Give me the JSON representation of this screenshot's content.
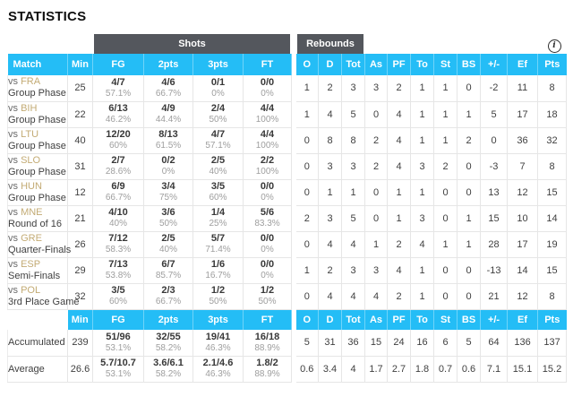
{
  "page_title": "STATISTICS",
  "vs_label": "vs",
  "colors": {
    "accent_cyan": "#24bdf6",
    "group_header_gray": "#54575d",
    "team_link_tan": "#c3ab74",
    "body_text": "#3f3f3f",
    "percent_gray": "#9e9e9e",
    "border_gray": "#e6e6e6"
  },
  "info_icon_glyph": "i",
  "table": {
    "group_headers": {
      "shots": "Shots",
      "rebounds": "Rebounds"
    },
    "columns_left": [
      "Match",
      "Min",
      "FG",
      "2pts",
      "3pts",
      "FT"
    ],
    "columns_right": [
      "O",
      "D",
      "Tot",
      "As",
      "PF",
      "To",
      "St",
      "BS",
      "+/-",
      "Ef",
      "Pts"
    ],
    "rows": [
      {
        "opponent": "FRA",
        "phase": "Group Phase",
        "min": "25",
        "shots": [
          {
            "v": "4/7",
            "pct": "57.1%"
          },
          {
            "v": "4/6",
            "pct": "66.7%"
          },
          {
            "v": "0/1",
            "pct": "0%"
          },
          {
            "v": "0/0",
            "pct": "0%"
          }
        ],
        "stats": [
          "1",
          "2",
          "3",
          "3",
          "2",
          "1",
          "1",
          "0",
          "-2",
          "11",
          "8"
        ]
      },
      {
        "opponent": "BIH",
        "phase": "Group Phase",
        "min": "22",
        "shots": [
          {
            "v": "6/13",
            "pct": "46.2%"
          },
          {
            "v": "4/9",
            "pct": "44.4%"
          },
          {
            "v": "2/4",
            "pct": "50%"
          },
          {
            "v": "4/4",
            "pct": "100%"
          }
        ],
        "stats": [
          "1",
          "4",
          "5",
          "0",
          "4",
          "1",
          "1",
          "1",
          "5",
          "17",
          "18"
        ]
      },
      {
        "opponent": "LTU",
        "phase": "Group Phase",
        "min": "40",
        "shots": [
          {
            "v": "12/20",
            "pct": "60%"
          },
          {
            "v": "8/13",
            "pct": "61.5%"
          },
          {
            "v": "4/7",
            "pct": "57.1%"
          },
          {
            "v": "4/4",
            "pct": "100%"
          }
        ],
        "stats": [
          "0",
          "8",
          "8",
          "2",
          "4",
          "1",
          "1",
          "2",
          "0",
          "36",
          "32"
        ]
      },
      {
        "opponent": "SLO",
        "phase": "Group Phase",
        "min": "31",
        "shots": [
          {
            "v": "2/7",
            "pct": "28.6%"
          },
          {
            "v": "0/2",
            "pct": "0%"
          },
          {
            "v": "2/5",
            "pct": "40%"
          },
          {
            "v": "2/2",
            "pct": "100%"
          }
        ],
        "stats": [
          "0",
          "3",
          "3",
          "2",
          "4",
          "3",
          "2",
          "0",
          "-3",
          "7",
          "8"
        ]
      },
      {
        "opponent": "HUN",
        "phase": "Group Phase",
        "min": "12",
        "shots": [
          {
            "v": "6/9",
            "pct": "66.7%"
          },
          {
            "v": "3/4",
            "pct": "75%"
          },
          {
            "v": "3/5",
            "pct": "60%"
          },
          {
            "v": "0/0",
            "pct": "0%"
          }
        ],
        "stats": [
          "0",
          "1",
          "1",
          "0",
          "1",
          "1",
          "0",
          "0",
          "13",
          "12",
          "15"
        ]
      },
      {
        "opponent": "MNE",
        "phase": "Round of 16",
        "min": "21",
        "shots": [
          {
            "v": "4/10",
            "pct": "40%"
          },
          {
            "v": "3/6",
            "pct": "50%"
          },
          {
            "v": "1/4",
            "pct": "25%"
          },
          {
            "v": "5/6",
            "pct": "83.3%"
          }
        ],
        "stats": [
          "2",
          "3",
          "5",
          "0",
          "1",
          "3",
          "0",
          "1",
          "15",
          "10",
          "14"
        ]
      },
      {
        "opponent": "GRE",
        "phase": "Quarter-Finals",
        "min": "26",
        "shots": [
          {
            "v": "7/12",
            "pct": "58.3%"
          },
          {
            "v": "2/5",
            "pct": "40%"
          },
          {
            "v": "5/7",
            "pct": "71.4%"
          },
          {
            "v": "0/0",
            "pct": "0%"
          }
        ],
        "stats": [
          "0",
          "4",
          "4",
          "1",
          "2",
          "4",
          "1",
          "1",
          "28",
          "17",
          "19"
        ]
      },
      {
        "opponent": "ESP",
        "phase": "Semi-Finals",
        "min": "29",
        "shots": [
          {
            "v": "7/13",
            "pct": "53.8%"
          },
          {
            "v": "6/7",
            "pct": "85.7%"
          },
          {
            "v": "1/6",
            "pct": "16.7%"
          },
          {
            "v": "0/0",
            "pct": "0%"
          }
        ],
        "stats": [
          "1",
          "2",
          "3",
          "3",
          "4",
          "1",
          "0",
          "0",
          "-13",
          "14",
          "15"
        ]
      },
      {
        "opponent": "POL",
        "phase": "3rd Place Game",
        "min": "32",
        "shots": [
          {
            "v": "3/5",
            "pct": "60%"
          },
          {
            "v": "2/3",
            "pct": "66.7%"
          },
          {
            "v": "1/2",
            "pct": "50%"
          },
          {
            "v": "1/2",
            "pct": "50%"
          }
        ],
        "stats": [
          "0",
          "4",
          "4",
          "4",
          "2",
          "1",
          "0",
          "0",
          "21",
          "12",
          "8"
        ]
      }
    ],
    "footer_rows": [
      {
        "label": "Accumulated",
        "min": "239",
        "shots": [
          {
            "v": "51/96",
            "pct": "53.1%"
          },
          {
            "v": "32/55",
            "pct": "58.2%"
          },
          {
            "v": "19/41",
            "pct": "46.3%"
          },
          {
            "v": "16/18",
            "pct": "88.9%"
          }
        ],
        "stats": [
          "5",
          "31",
          "36",
          "15",
          "24",
          "16",
          "6",
          "5",
          "64",
          "136",
          "137"
        ]
      },
      {
        "label": "Average",
        "min": "26.6",
        "shots": [
          {
            "v": "5.7/10.7",
            "pct": "53.1%"
          },
          {
            "v": "3.6/6.1",
            "pct": "58.2%"
          },
          {
            "v": "2.1/4.6",
            "pct": "46.3%"
          },
          {
            "v": "1.8/2",
            "pct": "88.9%"
          }
        ],
        "stats": [
          "0.6",
          "3.4",
          "4",
          "1.7",
          "2.7",
          "1.8",
          "0.7",
          "0.6",
          "7.1",
          "15.1",
          "15.2"
        ]
      }
    ]
  }
}
